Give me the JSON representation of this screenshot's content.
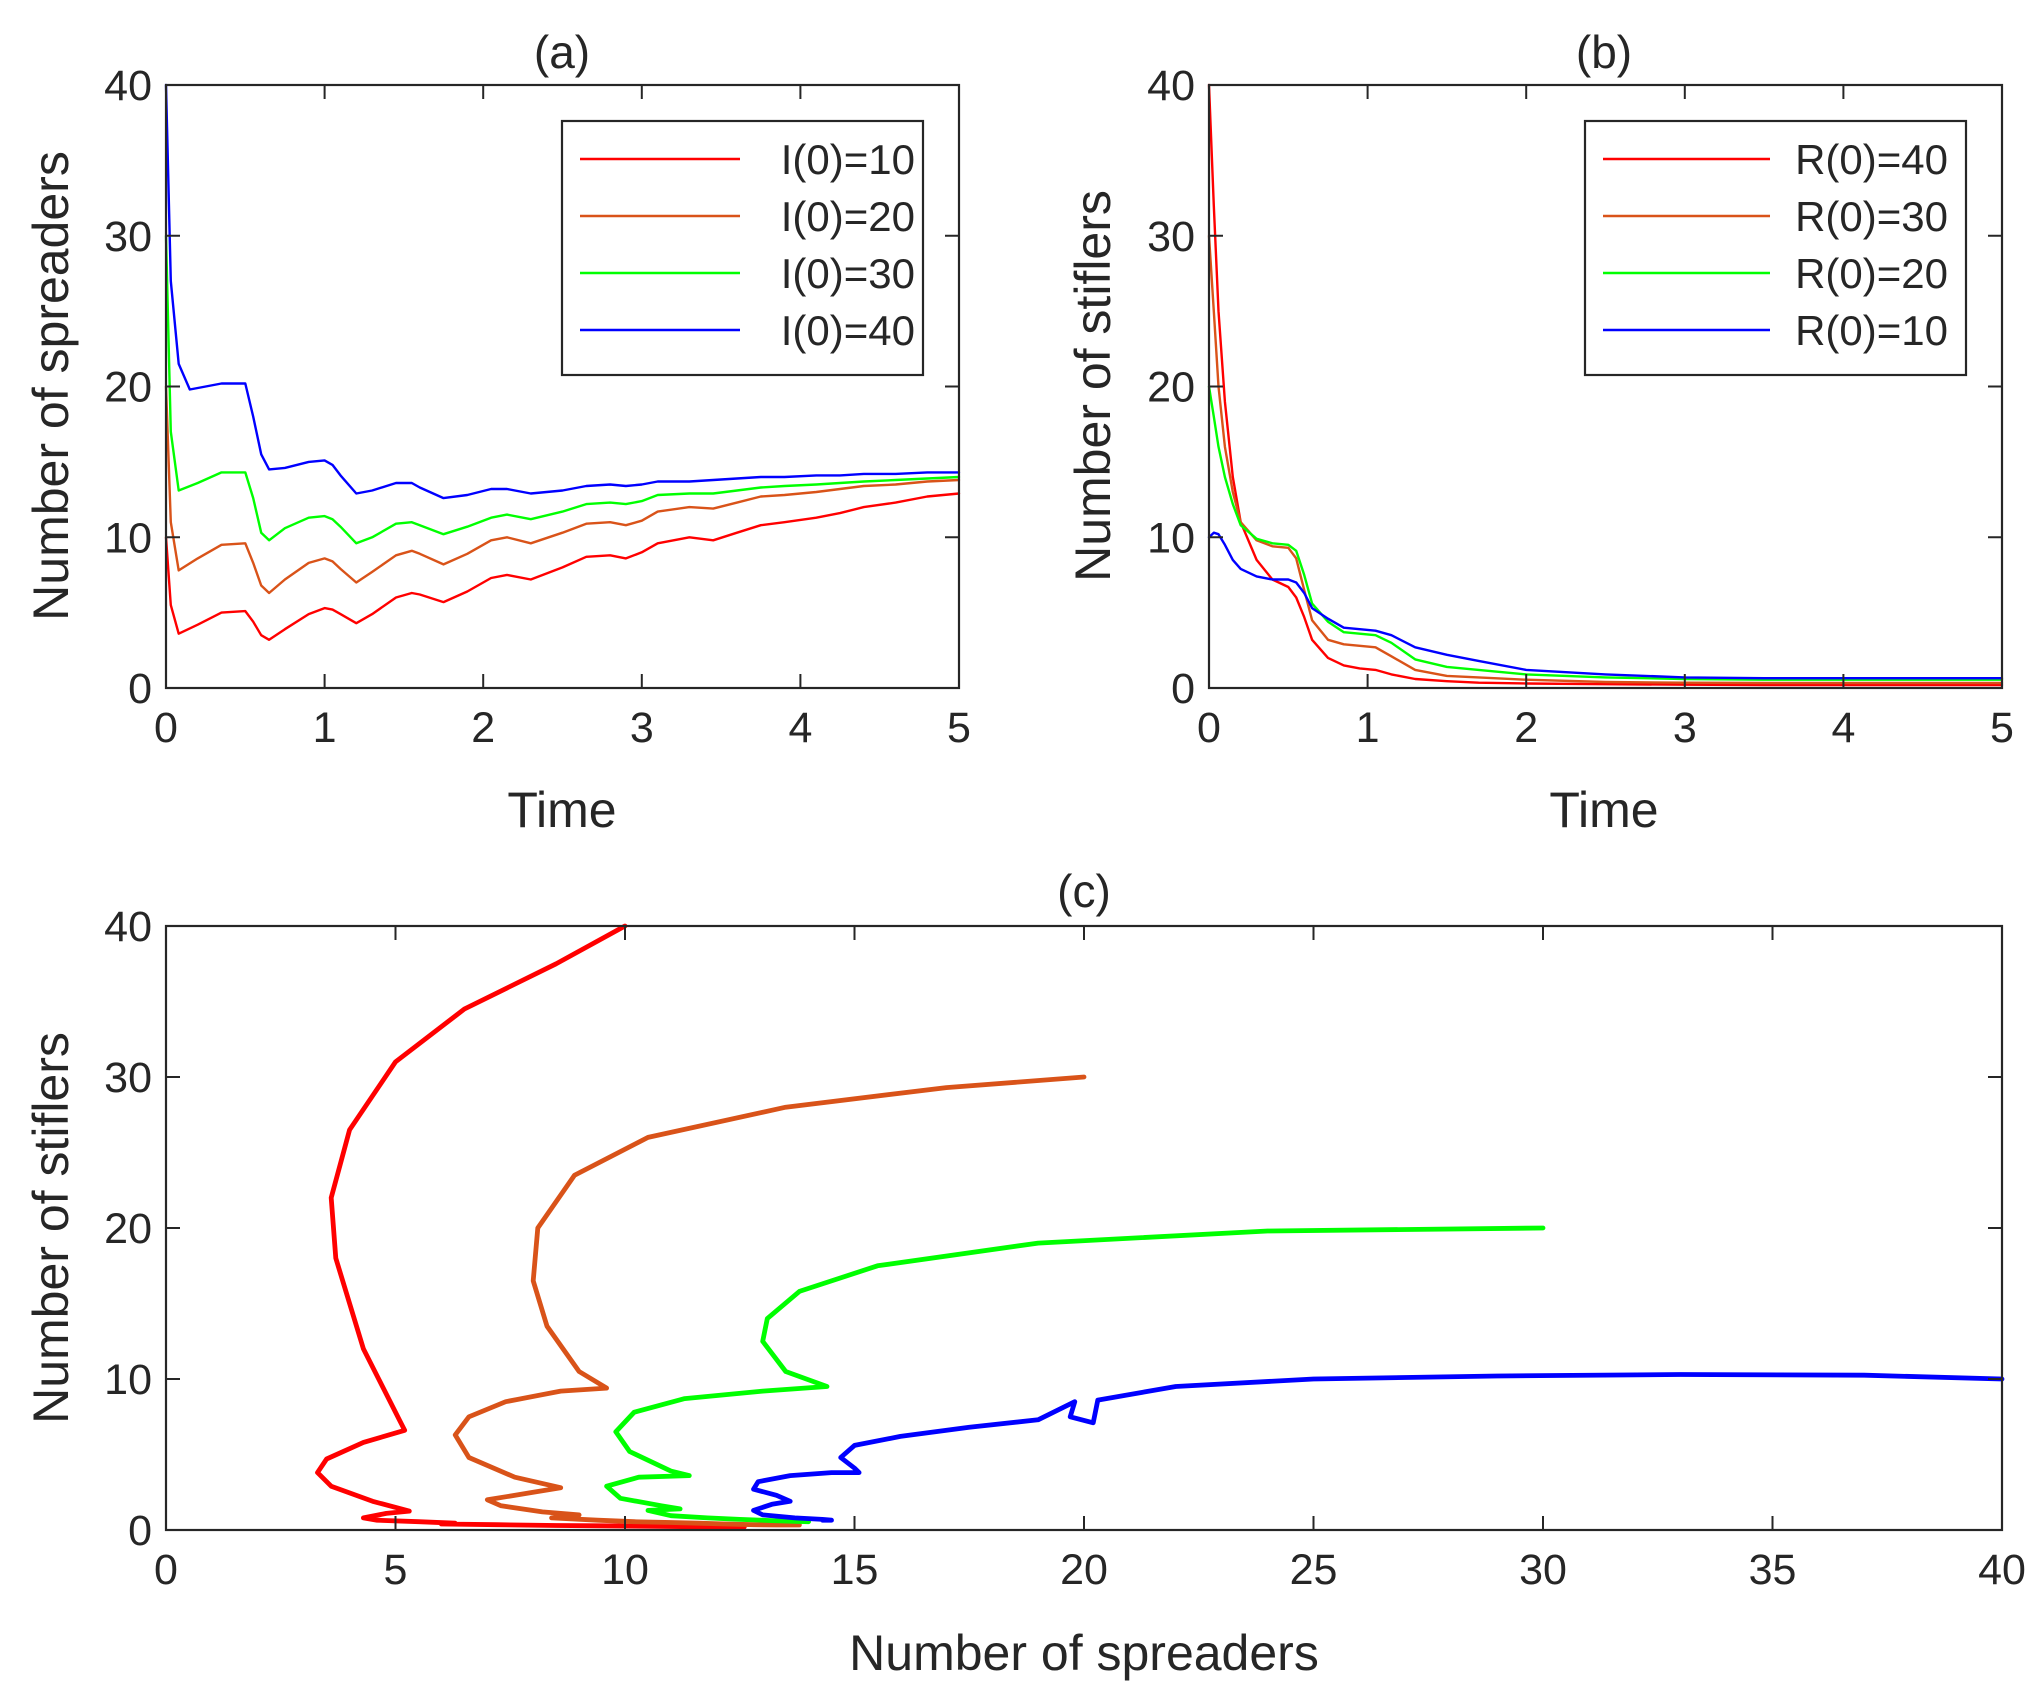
{
  "chart_data": [
    {
      "type": "line",
      "panel": "(a)",
      "title": "(a)",
      "xlabel": "Time",
      "ylabel": "Number of spreaders",
      "xlim": [
        0,
        5
      ],
      "ylim": [
        0,
        40
      ],
      "xticks": [
        "0",
        "1",
        "2",
        "3",
        "4",
        "5"
      ],
      "yticks": [
        "0",
        "10",
        "20",
        "30",
        "40"
      ],
      "legend_position": "top-right",
      "series": [
        {
          "name": "I(0)=10",
          "color": "#ff0000",
          "x": [
            0,
            0.03,
            0.08,
            0.2,
            0.35,
            0.5,
            0.55,
            0.6,
            0.65,
            0.75,
            0.9,
            1.0,
            1.05,
            1.1,
            1.2,
            1.3,
            1.45,
            1.55,
            1.6,
            1.75,
            1.9,
            2.05,
            2.15,
            2.3,
            2.5,
            2.65,
            2.8,
            2.9,
            3.0,
            3.1,
            3.3,
            3.45,
            3.6,
            3.75,
            3.9,
            4.1,
            4.25,
            4.4,
            4.6,
            4.8,
            5.0
          ],
          "y": [
            10,
            5.5,
            3.6,
            4.2,
            5.0,
            5.1,
            4.4,
            3.5,
            3.2,
            3.9,
            4.9,
            5.3,
            5.2,
            4.9,
            4.3,
            4.9,
            6.0,
            6.3,
            6.2,
            5.7,
            6.4,
            7.3,
            7.5,
            7.2,
            8.0,
            8.7,
            8.8,
            8.6,
            9.0,
            9.6,
            10.0,
            9.8,
            10.3,
            10.8,
            11.0,
            11.3,
            11.6,
            12.0,
            12.3,
            12.7,
            12.9
          ]
        },
        {
          "name": "I(0)=20",
          "color": "#d95319",
          "x": [
            0,
            0.03,
            0.08,
            0.2,
            0.35,
            0.5,
            0.55,
            0.6,
            0.65,
            0.75,
            0.9,
            1.0,
            1.05,
            1.1,
            1.2,
            1.3,
            1.45,
            1.55,
            1.6,
            1.75,
            1.9,
            2.05,
            2.15,
            2.3,
            2.5,
            2.65,
            2.8,
            2.9,
            3.0,
            3.1,
            3.3,
            3.45,
            3.6,
            3.75,
            3.9,
            4.1,
            4.25,
            4.4,
            4.6,
            4.8,
            5.0
          ],
          "y": [
            20,
            11,
            7.8,
            8.6,
            9.5,
            9.6,
            8.3,
            6.8,
            6.3,
            7.2,
            8.3,
            8.6,
            8.4,
            7.9,
            7.0,
            7.7,
            8.8,
            9.1,
            8.9,
            8.2,
            8.9,
            9.8,
            10.0,
            9.6,
            10.3,
            10.9,
            11.0,
            10.8,
            11.1,
            11.7,
            12.0,
            11.9,
            12.3,
            12.7,
            12.8,
            13.0,
            13.2,
            13.4,
            13.5,
            13.7,
            13.8
          ]
        },
        {
          "name": "I(0)=30",
          "color": "#00ff00",
          "x": [
            0,
            0.03,
            0.08,
            0.2,
            0.35,
            0.5,
            0.55,
            0.6,
            0.65,
            0.75,
            0.9,
            1.0,
            1.05,
            1.1,
            1.2,
            1.3,
            1.45,
            1.55,
            1.6,
            1.75,
            1.9,
            2.05,
            2.15,
            2.3,
            2.5,
            2.65,
            2.8,
            2.9,
            3.0,
            3.1,
            3.3,
            3.45,
            3.6,
            3.75,
            3.9,
            4.1,
            4.25,
            4.4,
            4.6,
            4.8,
            5.0
          ],
          "y": [
            30,
            17,
            13.1,
            13.6,
            14.3,
            14.3,
            12.6,
            10.3,
            9.8,
            10.6,
            11.3,
            11.4,
            11.2,
            10.7,
            9.6,
            10.0,
            10.9,
            11.0,
            10.8,
            10.2,
            10.7,
            11.3,
            11.5,
            11.2,
            11.7,
            12.2,
            12.3,
            12.2,
            12.4,
            12.8,
            12.9,
            12.9,
            13.1,
            13.3,
            13.4,
            13.5,
            13.6,
            13.7,
            13.8,
            13.9,
            14.0
          ]
        },
        {
          "name": "I(0)=40",
          "color": "#0000ff",
          "x": [
            0,
            0.03,
            0.08,
            0.15,
            0.25,
            0.35,
            0.5,
            0.55,
            0.6,
            0.65,
            0.75,
            0.9,
            1.0,
            1.05,
            1.1,
            1.2,
            1.3,
            1.45,
            1.55,
            1.6,
            1.75,
            1.9,
            2.05,
            2.15,
            2.3,
            2.5,
            2.65,
            2.8,
            2.9,
            3.0,
            3.1,
            3.3,
            3.45,
            3.6,
            3.75,
            3.9,
            4.1,
            4.25,
            4.4,
            4.6,
            4.8,
            5.0
          ],
          "y": [
            40,
            27,
            21.5,
            19.8,
            20.0,
            20.2,
            20.2,
            18.0,
            15.5,
            14.5,
            14.6,
            15.0,
            15.1,
            14.8,
            14.1,
            12.9,
            13.1,
            13.6,
            13.6,
            13.3,
            12.6,
            12.8,
            13.2,
            13.2,
            12.9,
            13.1,
            13.4,
            13.5,
            13.4,
            13.5,
            13.7,
            13.7,
            13.8,
            13.9,
            14.0,
            14.0,
            14.1,
            14.1,
            14.2,
            14.2,
            14.3,
            14.3
          ]
        }
      ]
    },
    {
      "type": "line",
      "panel": "(b)",
      "title": "(b)",
      "xlabel": "Time",
      "ylabel": "Number of stiflers",
      "xlim": [
        0,
        5
      ],
      "ylim": [
        0,
        40
      ],
      "xticks": [
        "0",
        "1",
        "2",
        "3",
        "4",
        "5"
      ],
      "yticks": [
        "0",
        "10",
        "20",
        "30",
        "40"
      ],
      "legend_position": "top-right",
      "series": [
        {
          "name": "R(0)=40",
          "color": "#ff0000",
          "x": [
            0,
            0.03,
            0.06,
            0.1,
            0.15,
            0.2,
            0.3,
            0.4,
            0.5,
            0.55,
            0.6,
            0.65,
            0.75,
            0.85,
            0.95,
            1.05,
            1.15,
            1.3,
            1.5,
            1.7,
            2.0,
            2.5,
            3.0,
            3.5,
            4.0,
            4.5,
            5.0
          ],
          "y": [
            40,
            32,
            25,
            19,
            14,
            11,
            8.5,
            7.2,
            6.7,
            6.0,
            4.7,
            3.2,
            2.0,
            1.5,
            1.3,
            1.2,
            0.9,
            0.6,
            0.45,
            0.35,
            0.3,
            0.25,
            0.22,
            0.2,
            0.2,
            0.2,
            0.2
          ]
        },
        {
          "name": "R(0)=30",
          "color": "#d95319",
          "x": [
            0,
            0.03,
            0.06,
            0.1,
            0.15,
            0.2,
            0.3,
            0.4,
            0.5,
            0.55,
            0.6,
            0.65,
            0.75,
            0.85,
            0.95,
            1.05,
            1.15,
            1.3,
            1.5,
            1.7,
            2.0,
            2.5,
            3.0,
            3.5,
            4.0,
            4.5,
            5.0
          ],
          "y": [
            30,
            25,
            20,
            16,
            13,
            11,
            9.8,
            9.4,
            9.3,
            8.6,
            6.5,
            4.5,
            3.2,
            2.9,
            2.8,
            2.7,
            2.1,
            1.2,
            0.8,
            0.7,
            0.55,
            0.4,
            0.35,
            0.33,
            0.33,
            0.33,
            0.33
          ]
        },
        {
          "name": "R(0)=20",
          "color": "#00ff00",
          "x": [
            0,
            0.03,
            0.06,
            0.1,
            0.15,
            0.2,
            0.3,
            0.4,
            0.5,
            0.55,
            0.6,
            0.65,
            0.75,
            0.85,
            0.95,
            1.05,
            1.15,
            1.3,
            1.5,
            1.7,
            2.0,
            2.5,
            3.0,
            3.5,
            4.0,
            4.5,
            5.0
          ],
          "y": [
            20,
            18,
            16,
            14,
            12.2,
            10.8,
            9.9,
            9.6,
            9.5,
            9.1,
            7.5,
            5.6,
            4.4,
            3.7,
            3.6,
            3.5,
            3.0,
            1.9,
            1.4,
            1.2,
            0.9,
            0.7,
            0.6,
            0.55,
            0.55,
            0.55,
            0.55
          ]
        },
        {
          "name": "R(0)=10",
          "color": "#0000ff",
          "x": [
            0,
            0.03,
            0.06,
            0.1,
            0.15,
            0.2,
            0.3,
            0.4,
            0.5,
            0.55,
            0.6,
            0.65,
            0.75,
            0.85,
            0.95,
            1.05,
            1.15,
            1.3,
            1.5,
            1.7,
            2.0,
            2.5,
            3.0,
            3.5,
            4.0,
            4.5,
            5.0
          ],
          "y": [
            10,
            10.3,
            10.2,
            9.5,
            8.5,
            7.9,
            7.4,
            7.2,
            7.2,
            7.0,
            6.3,
            5.3,
            4.6,
            4.0,
            3.9,
            3.8,
            3.5,
            2.7,
            2.2,
            1.8,
            1.2,
            0.9,
            0.7,
            0.65,
            0.65,
            0.65,
            0.65
          ]
        }
      ]
    },
    {
      "type": "line",
      "panel": "(c)",
      "title": "(c)",
      "xlabel": "Number of spreaders",
      "ylabel": "Number of stiflers",
      "xlim": [
        0,
        40
      ],
      "ylim": [
        0,
        40
      ],
      "xticks": [
        "0",
        "5",
        "10",
        "15",
        "20",
        "25",
        "30",
        "35",
        "40"
      ],
      "yticks": [
        "0",
        "10",
        "20",
        "30",
        "40"
      ],
      "series": [
        {
          "name": "I(0)=10, R(0)=40",
          "color": "#ff0000",
          "x": [
            10,
            8.5,
            6.5,
            5.0,
            4.0,
            3.6,
            3.7,
            4.3,
            5.1,
            5.2,
            4.3,
            3.5,
            3.3,
            3.6,
            4.5,
            5.3,
            4.8,
            4.3,
            4.6,
            5.5,
            6.3,
            6.0,
            7.2,
            8.5,
            9.5,
            10.5,
            11.5,
            12.3,
            12.6
          ],
          "y": [
            40,
            37.5,
            34.5,
            31,
            26.5,
            22,
            18,
            12,
            7.2,
            6.6,
            5.8,
            4.7,
            3.8,
            2.9,
            1.9,
            1.25,
            1.1,
            0.8,
            0.65,
            0.55,
            0.45,
            0.4,
            0.35,
            0.3,
            0.28,
            0.25,
            0.22,
            0.2,
            0.2
          ]
        },
        {
          "name": "I(0)=20, R(0)=30",
          "color": "#d95319",
          "x": [
            20,
            17,
            13.5,
            10.5,
            8.9,
            8.1,
            8.0,
            8.3,
            9.0,
            9.6,
            8.6,
            7.4,
            6.6,
            6.3,
            6.6,
            7.6,
            8.6,
            8.0,
            7.0,
            7.3,
            8.2,
            9.0,
            8.4,
            9.4,
            10.2,
            11.0,
            11.6,
            12.2,
            12.8,
            13.3,
            13.8
          ],
          "y": [
            30,
            29.3,
            28.0,
            26.0,
            23.5,
            20.0,
            16.5,
            13.5,
            10.5,
            9.4,
            9.2,
            8.5,
            7.5,
            6.3,
            4.8,
            3.5,
            2.8,
            2.5,
            2.0,
            1.6,
            1.2,
            1.0,
            0.8,
            0.65,
            0.55,
            0.5,
            0.45,
            0.4,
            0.35,
            0.33,
            0.33
          ]
        },
        {
          "name": "I(0)=30, R(0)=20",
          "color": "#00ff00",
          "x": [
            30,
            24,
            19,
            15.5,
            13.8,
            13.1,
            13.0,
            13.5,
            14.4,
            13.0,
            11.3,
            10.2,
            9.8,
            10.1,
            11.0,
            11.4,
            10.3,
            9.6,
            9.9,
            10.8,
            11.2,
            10.5,
            11.0,
            11.8,
            12.5,
            13.2,
            13.8,
            14.0
          ],
          "y": [
            20,
            19.8,
            19.0,
            17.5,
            15.8,
            14.0,
            12.5,
            10.5,
            9.5,
            9.2,
            8.7,
            7.8,
            6.5,
            5.2,
            3.9,
            3.6,
            3.5,
            2.9,
            2.1,
            1.6,
            1.4,
            1.3,
            0.95,
            0.8,
            0.7,
            0.62,
            0.56,
            0.55
          ]
        },
        {
          "name": "I(0)=40, R(0)=10",
          "color": "#0000ff",
          "x": [
            40,
            37,
            33,
            29,
            25,
            22,
            20.3,
            20.2,
            19.7,
            19.8,
            19.0,
            17.5,
            16.0,
            15.0,
            14.7,
            15.0,
            15.1,
            14.5,
            13.6,
            12.9,
            12.8,
            13.3,
            13.6,
            13.2,
            12.8,
            13.0,
            13.7,
            14.3,
            14.5,
            14.3
          ],
          "y": [
            10,
            10.25,
            10.3,
            10.2,
            10.0,
            9.5,
            8.6,
            7.1,
            7.5,
            8.5,
            7.3,
            6.8,
            6.2,
            5.6,
            4.8,
            4.1,
            3.8,
            3.8,
            3.6,
            3.2,
            2.7,
            2.3,
            1.9,
            1.7,
            1.3,
            1.0,
            0.8,
            0.7,
            0.65,
            0.65
          ]
        }
      ]
    }
  ]
}
